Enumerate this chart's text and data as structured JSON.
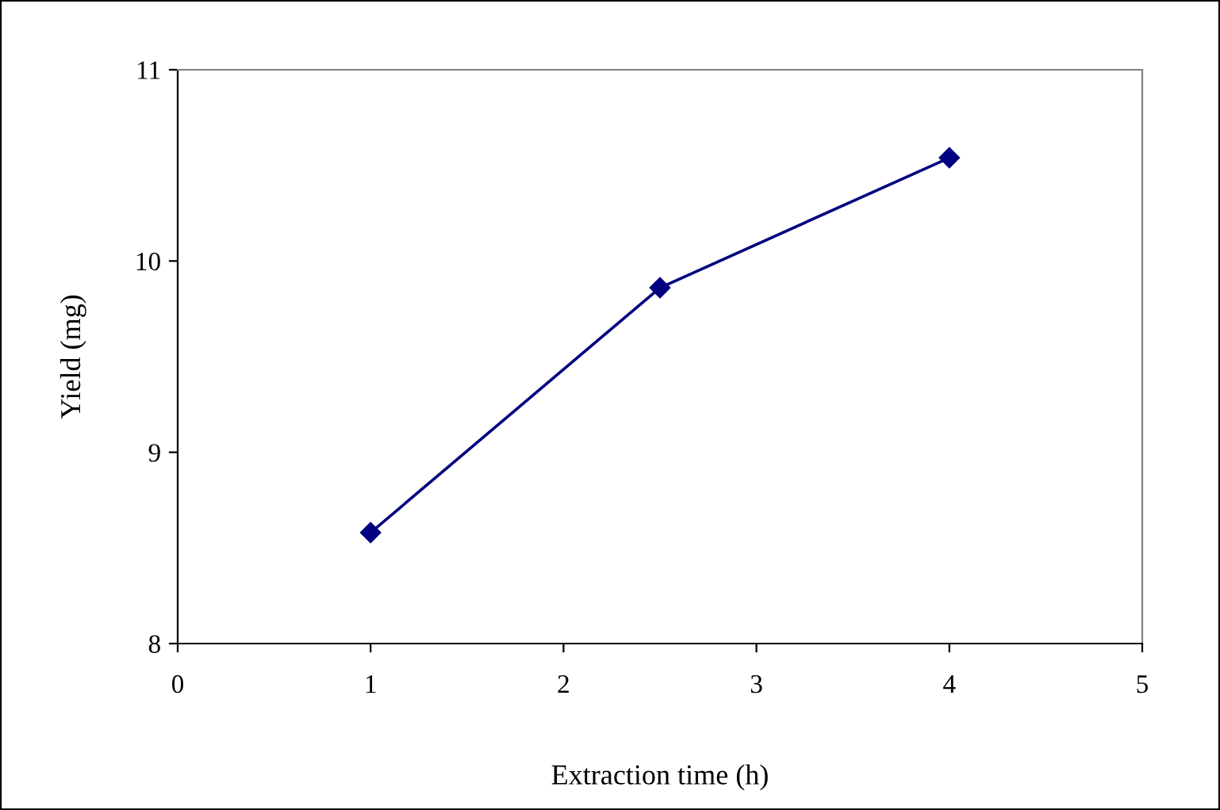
{
  "chart_data": {
    "type": "line",
    "xlabel": "Extraction time (h)",
    "ylabel": "Yield (mg)",
    "x": [
      1,
      2.5,
      4
    ],
    "series": [
      {
        "color": "#000080",
        "values": [
          8.58,
          9.86,
          10.54
        ]
      }
    ],
    "xlim": [
      0,
      5
    ],
    "xticks": [
      0,
      1,
      2,
      3,
      4,
      5
    ],
    "ylim": [
      8,
      11
    ],
    "yticks": [
      8,
      9,
      10,
      11
    ],
    "grid": false,
    "legend": false,
    "marker": "diamond",
    "line_style": "solid"
  }
}
